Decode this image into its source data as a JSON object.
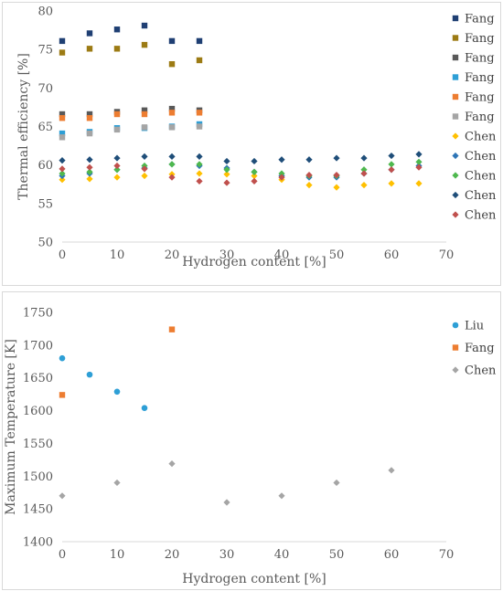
{
  "chart_data": [
    {
      "type": "scatter",
      "xlabel": "Hydrogen content [%]",
      "ylabel": "Thermal efficiency [%]",
      "xlim": [
        0,
        70
      ],
      "ylim": [
        50,
        80
      ],
      "xticks": [
        0,
        10,
        20,
        30,
        40,
        50,
        60,
        70
      ],
      "yticks": [
        50,
        55,
        60,
        65,
        70,
        75,
        80
      ],
      "grid": false,
      "legend": "right",
      "series": [
        {
          "name": "Fang",
          "marker": "square",
          "color": "#1f3f73",
          "x": [
            0,
            5,
            10,
            15,
            20,
            25
          ],
          "y": [
            76.1,
            77.1,
            77.6,
            78.1,
            76.1,
            76.1
          ]
        },
        {
          "name": "Fang",
          "marker": "square",
          "color": "#9c7b14",
          "x": [
            0,
            5,
            10,
            15,
            20,
            25
          ],
          "y": [
            74.6,
            75.1,
            75.1,
            75.6,
            73.1,
            73.6
          ]
        },
        {
          "name": "Fang",
          "marker": "square",
          "color": "#595959",
          "x": [
            0,
            5,
            10,
            15,
            20,
            25
          ],
          "y": [
            66.6,
            66.6,
            66.9,
            67.1,
            67.3,
            67.1
          ]
        },
        {
          "name": "Fang",
          "marker": "square",
          "color": "#2e9fd6",
          "x": [
            0,
            5,
            10,
            15,
            20,
            25
          ],
          "y": [
            64.1,
            64.3,
            64.8,
            64.8,
            65.0,
            65.3
          ]
        },
        {
          "name": "Fang",
          "marker": "square",
          "color": "#ed7d31",
          "x": [
            0,
            5,
            10,
            15,
            20,
            25
          ],
          "y": [
            66.1,
            66.1,
            66.6,
            66.6,
            66.8,
            66.8
          ]
        },
        {
          "name": "Fang",
          "marker": "square",
          "color": "#a5a5a5",
          "x": [
            0,
            5,
            10,
            15,
            20,
            25
          ],
          "y": [
            63.6,
            64.1,
            64.6,
            64.9,
            64.9,
            65.0
          ]
        },
        {
          "name": "Chen",
          "marker": "diamond",
          "color": "#ffc000",
          "x": [
            0,
            5,
            10,
            15,
            20,
            25,
            30,
            35,
            40,
            45,
            50,
            55,
            60,
            65
          ],
          "y": [
            58.1,
            58.2,
            58.4,
            58.6,
            58.8,
            58.9,
            58.8,
            58.6,
            58.1,
            57.4,
            57.1,
            57.4,
            57.6,
            57.6
          ]
        },
        {
          "name": "Chen",
          "marker": "diamond",
          "color": "#2e75b6",
          "x": [
            0,
            5,
            10,
            15,
            20,
            25,
            30,
            35,
            40,
            45,
            50,
            55,
            60,
            65
          ],
          "y": [
            58.6,
            58.9,
            59.4,
            59.6,
            60.1,
            59.9,
            59.6,
            59.1,
            58.6,
            58.4,
            58.4,
            58.9,
            59.4,
            59.9
          ]
        },
        {
          "name": "Chen",
          "marker": "diamond",
          "color": "#4eb84e",
          "x": [
            0,
            5,
            10,
            15,
            20,
            25,
            30,
            35,
            40,
            45,
            50,
            55,
            60,
            65
          ],
          "y": [
            58.9,
            59.1,
            59.4,
            59.9,
            60.1,
            60.1,
            59.4,
            59.1,
            58.9,
            58.6,
            58.6,
            59.4,
            60.1,
            60.4
          ]
        },
        {
          "name": "Chen",
          "marker": "diamond",
          "color": "#1f4e79",
          "x": [
            0,
            5,
            10,
            15,
            20,
            25,
            30,
            35,
            40,
            45,
            50,
            55,
            60,
            65
          ],
          "y": [
            60.6,
            60.7,
            60.9,
            61.1,
            61.1,
            61.1,
            60.5,
            60.5,
            60.7,
            60.7,
            60.9,
            60.9,
            61.2,
            61.4
          ]
        },
        {
          "name": "Chen",
          "marker": "diamond",
          "color": "#c0504d",
          "x": [
            0,
            5,
            10,
            15,
            20,
            25,
            30,
            35,
            40,
            45,
            50,
            55,
            60,
            65
          ],
          "y": [
            59.5,
            59.7,
            59.9,
            59.5,
            58.4,
            57.9,
            57.7,
            57.9,
            58.4,
            58.7,
            58.7,
            58.9,
            59.4,
            59.7
          ]
        }
      ]
    },
    {
      "type": "scatter",
      "xlabel": "Hydrogen content [%]",
      "ylabel": "Maximum Temperature [K]",
      "xlim": [
        0,
        70
      ],
      "ylim": [
        1400,
        1750
      ],
      "xticks": [
        0,
        10,
        20,
        30,
        40,
        50,
        60,
        70
      ],
      "yticks": [
        1400,
        1450,
        1500,
        1550,
        1600,
        1650,
        1700,
        1750
      ],
      "grid": false,
      "legend": "right",
      "series": [
        {
          "name": "Liu",
          "marker": "circle",
          "color": "#2e9fd6",
          "x": [
            0,
            5,
            10,
            15
          ],
          "y": [
            1680,
            1655,
            1629,
            1604
          ]
        },
        {
          "name": "Fang",
          "marker": "square",
          "color": "#ed7d31",
          "x": [
            0,
            20
          ],
          "y": [
            1624,
            1724
          ]
        },
        {
          "name": "Chen",
          "marker": "diamond",
          "color": "#a5a5a5",
          "x": [
            0,
            10,
            20,
            30,
            40,
            50,
            60
          ],
          "y": [
            1470,
            1490,
            1519,
            1460,
            1470,
            1490,
            1509
          ]
        }
      ]
    }
  ]
}
